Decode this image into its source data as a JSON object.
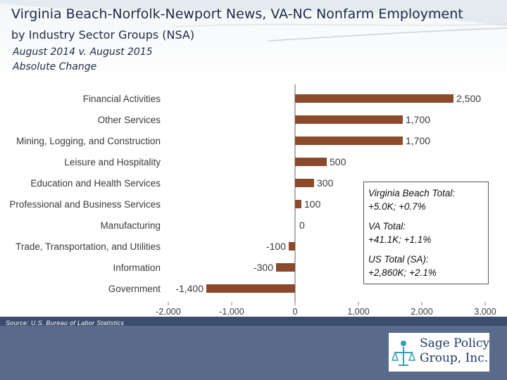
{
  "header": {
    "title": "Virginia Beach-Norfolk-Newport News, VA-NC Nonfarm Employment",
    "subtitle": "by Industry Sector Groups (NSA)",
    "period_line1": "August 2014 v. August 2015",
    "period_line2": "Absolute Change"
  },
  "chart_data": {
    "type": "bar",
    "orientation": "horizontal",
    "categories": [
      "Financial Activities",
      "Other Services",
      "Mining, Logging, and Construction",
      "Leisure and Hospitality",
      "Education and Health Services",
      "Professional and Business Services",
      "Manufacturing",
      "Trade, Transportation, and Utilities",
      "Information",
      "Government"
    ],
    "values": [
      2500,
      1700,
      1700,
      500,
      300,
      100,
      0,
      -100,
      -300,
      -1400
    ],
    "value_labels": [
      "2,500",
      "1,700",
      "1,700",
      "500",
      "300",
      "100",
      "0",
      "-100",
      "-300",
      "-1,400"
    ],
    "xlim": [
      -2000,
      3000
    ],
    "xticks": [
      -2000,
      -1000,
      0,
      1000,
      2000,
      3000
    ],
    "xtick_labels": [
      "-2,000",
      "-1,000",
      "0",
      "1,000",
      "2,000",
      "3,000"
    ],
    "bar_color": "#8b4a2b",
    "grid": false
  },
  "totals": {
    "line1": "Virginia Beach Total:",
    "line2": "+5.0K; +0.7%",
    "line3": "VA Total:",
    "line4": "+41.1K; +1.1%",
    "line5": "US Total (SA):",
    "line6": "+2,860K; +2.1%"
  },
  "footer": {
    "source": "Source: U.S. Bureau of Labor Statistics",
    "logo_line1": "Sage Policy",
    "logo_line2": "Group, Inc."
  },
  "colors": {
    "title": "#1d2a44",
    "footer_bar": "#5a6a8a",
    "footer_strip": "#3b4d6e"
  }
}
